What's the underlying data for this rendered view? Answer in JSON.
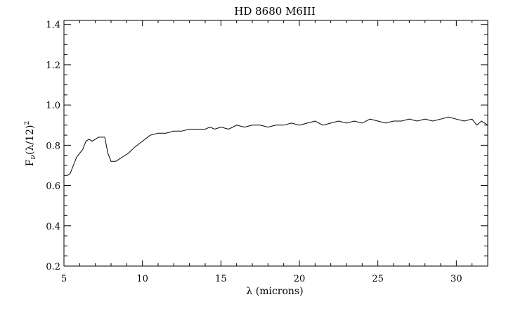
{
  "chart_data": {
    "type": "line",
    "title": "HD 8680  M6III",
    "xlabel": "λ (microns)",
    "ylabel_parts": {
      "F": "F",
      "nu": "ν",
      "rest": "(λ/12)",
      "exp": "2"
    },
    "xlim": [
      5,
      32
    ],
    "ylim": [
      0.2,
      1.42
    ],
    "x_ticks": [
      "5",
      "10",
      "15",
      "20",
      "25",
      "30"
    ],
    "y_ticks": [
      "0.2",
      "0.4",
      "0.6",
      "0.8",
      "1.0",
      "1.2",
      "1.4"
    ],
    "grid": false,
    "series": [
      {
        "x": [
          5.2,
          5.4,
          5.6,
          5.8,
          6.0,
          6.2,
          6.4,
          6.6,
          6.8,
          7.0,
          7.2,
          7.4,
          7.6,
          7.8,
          8.0,
          8.3,
          8.7,
          9.1,
          9.5,
          10.0,
          10.5,
          11.0,
          11.5,
          12.0,
          12.5,
          13.0,
          13.5,
          14.0,
          14.3,
          14.6,
          15.0,
          15.5,
          16.0,
          16.5,
          17.0,
          17.5,
          18.0,
          18.5,
          19.0,
          19.5,
          20.0,
          20.5,
          21.0,
          21.5,
          22.0,
          22.5,
          23.0,
          23.5,
          24.0,
          24.5,
          25.0,
          25.5,
          26.0,
          26.5,
          27.0,
          27.5,
          28.0,
          28.5,
          29.0,
          29.5,
          30.0,
          30.5,
          31.0,
          31.3,
          31.6,
          32.0
        ],
        "y": [
          0.65,
          0.66,
          0.7,
          0.74,
          0.76,
          0.78,
          0.82,
          0.83,
          0.82,
          0.83,
          0.84,
          0.84,
          0.84,
          0.76,
          0.72,
          0.72,
          0.74,
          0.76,
          0.79,
          0.82,
          0.85,
          0.86,
          0.86,
          0.87,
          0.87,
          0.88,
          0.88,
          0.88,
          0.89,
          0.88,
          0.89,
          0.88,
          0.9,
          0.89,
          0.9,
          0.9,
          0.89,
          0.9,
          0.9,
          0.91,
          0.9,
          0.91,
          0.92,
          0.9,
          0.91,
          0.92,
          0.91,
          0.92,
          0.91,
          0.93,
          0.92,
          0.91,
          0.92,
          0.92,
          0.93,
          0.92,
          0.93,
          0.92,
          0.93,
          0.94,
          0.93,
          0.92,
          0.93,
          0.9,
          0.92,
          0.9
        ]
      }
    ]
  }
}
